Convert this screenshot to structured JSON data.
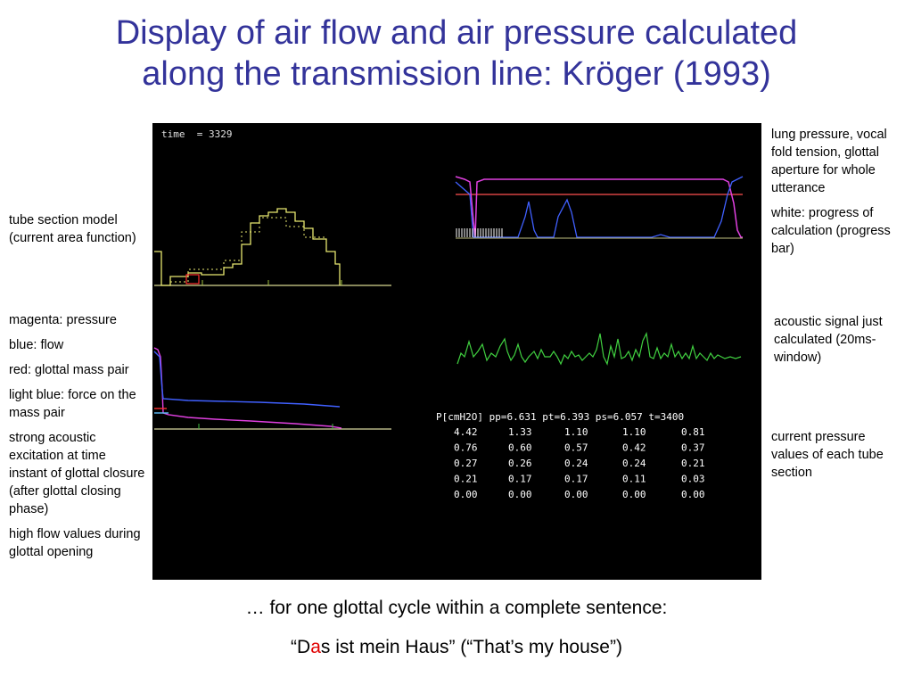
{
  "title_line1": "Display of air flow and air pressure calculated",
  "title_line2": "along the transmission line: Kröger (1993)",
  "left_notes": {
    "tube": "tube section model (current area function)",
    "magenta": "magenta: pressure",
    "blue": "blue: flow",
    "red": "red: glottal mass pair",
    "lightblue": "light blue: force on the mass pair",
    "excitation": "strong acoustic excitation at time instant of glottal closure (after glottal closing phase)",
    "highflow": "high flow values during glottal opening"
  },
  "right_notes": {
    "lung": "lung pressure, vocal fold tension, glottal aperture for whole utterance",
    "white": "white: progress of calculation (progress bar)",
    "acoustic": "acoustic signal just calculated (20ms-window)",
    "current": "current pressure values of each tube section"
  },
  "screen": {
    "time_label": "time  = 3329",
    "pressure_header": "P[cmH2O] pp=6.631 pt=6.393 ps=6.057 t=3400",
    "pressure_rows": [
      [
        "4.42",
        "1.33",
        "1.10",
        "1.10",
        "0.81"
      ],
      [
        "0.76",
        "0.60",
        "0.57",
        "0.42",
        "0.37"
      ],
      [
        "0.27",
        "0.26",
        "0.24",
        "0.24",
        "0.21"
      ],
      [
        "0.21",
        "0.17",
        "0.17",
        "0.11",
        "0.03"
      ],
      [
        "0.00",
        "0.00",
        "0.00",
        "0.00",
        "0.00"
      ]
    ]
  },
  "caption1": "… for one glottal cycle within a complete sentence:",
  "caption2": {
    "open_quote": "“D",
    "highlight": "a",
    "rest": "s ist mein Haus” (“That’s my house”)"
  },
  "colors": {
    "title": "#33339a",
    "highlight": "#e00000",
    "screen_bg": "#000000",
    "magenta": "#e040e0",
    "blue": "#4060ff",
    "red": "#ff3030",
    "lightblue": "#60c0ff",
    "tube": "#e8e870",
    "acoustic": "#40d040"
  }
}
